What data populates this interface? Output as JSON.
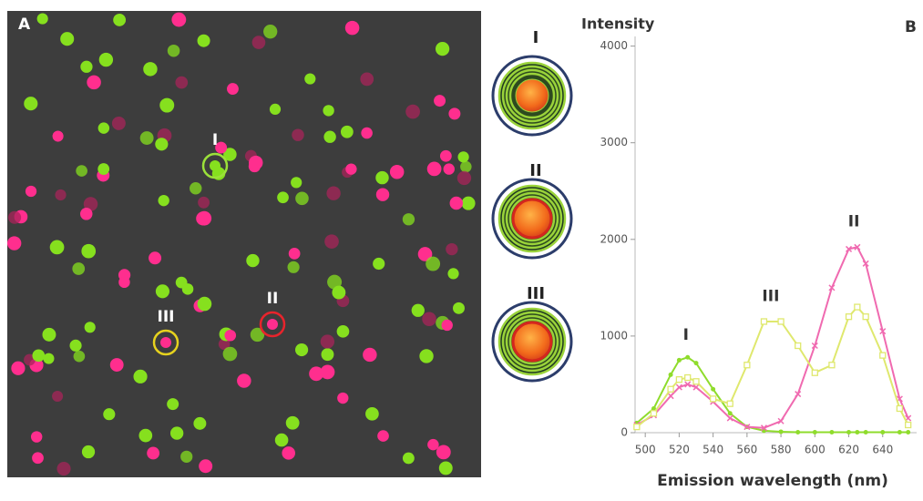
{
  "panel_a": {
    "label": "A",
    "markers": [
      {
        "label": "I",
        "color": "#9be03a"
      },
      {
        "label": "II",
        "color": "#e8242c"
      },
      {
        "label": "III",
        "color": "#e6d21e"
      }
    ]
  },
  "schematic": {
    "labels": [
      "I",
      "II",
      "III"
    ]
  },
  "chart_data": {
    "type": "line",
    "panel_label": "B",
    "y_label": "Intensity",
    "x_label": "Emission wavelength (nm)",
    "x": [
      495,
      505,
      515,
      520,
      525,
      530,
      540,
      550,
      560,
      570,
      580,
      590,
      600,
      610,
      620,
      625,
      630,
      640,
      650,
      655
    ],
    "series": [
      {
        "name": "I",
        "color": "#8fdc2c",
        "marker": "dot",
        "values": [
          100,
          250,
          600,
          750,
          780,
          720,
          450,
          200,
          60,
          20,
          10,
          5,
          5,
          5,
          5,
          5,
          5,
          5,
          5,
          5
        ]
      },
      {
        "name": "II",
        "color": "#f06ab0",
        "marker": "cross",
        "values": [
          80,
          180,
          380,
          470,
          500,
          470,
          320,
          150,
          60,
          50,
          120,
          400,
          900,
          1500,
          1900,
          1920,
          1750,
          1050,
          350,
          150
        ]
      },
      {
        "name": "III",
        "color": "#dfe86e",
        "marker": "square",
        "values": [
          60,
          200,
          450,
          550,
          570,
          530,
          350,
          300,
          700,
          1150,
          1150,
          900,
          620,
          700,
          1200,
          1300,
          1200,
          800,
          250,
          80
        ]
      }
    ],
    "annotations": [
      {
        "text": "I",
        "x": 524,
        "y": 1010
      },
      {
        "text": "III",
        "x": 574,
        "y": 1410
      },
      {
        "text": "II",
        "x": 623,
        "y": 2180
      }
    ],
    "xlim": [
      494,
      660
    ],
    "xticks": [
      500,
      520,
      540,
      560,
      580,
      600,
      620,
      640
    ],
    "ylim": [
      0,
      4100
    ],
    "yticks": [
      0,
      1000,
      2000,
      3000,
      4000
    ],
    "grid": false
  }
}
